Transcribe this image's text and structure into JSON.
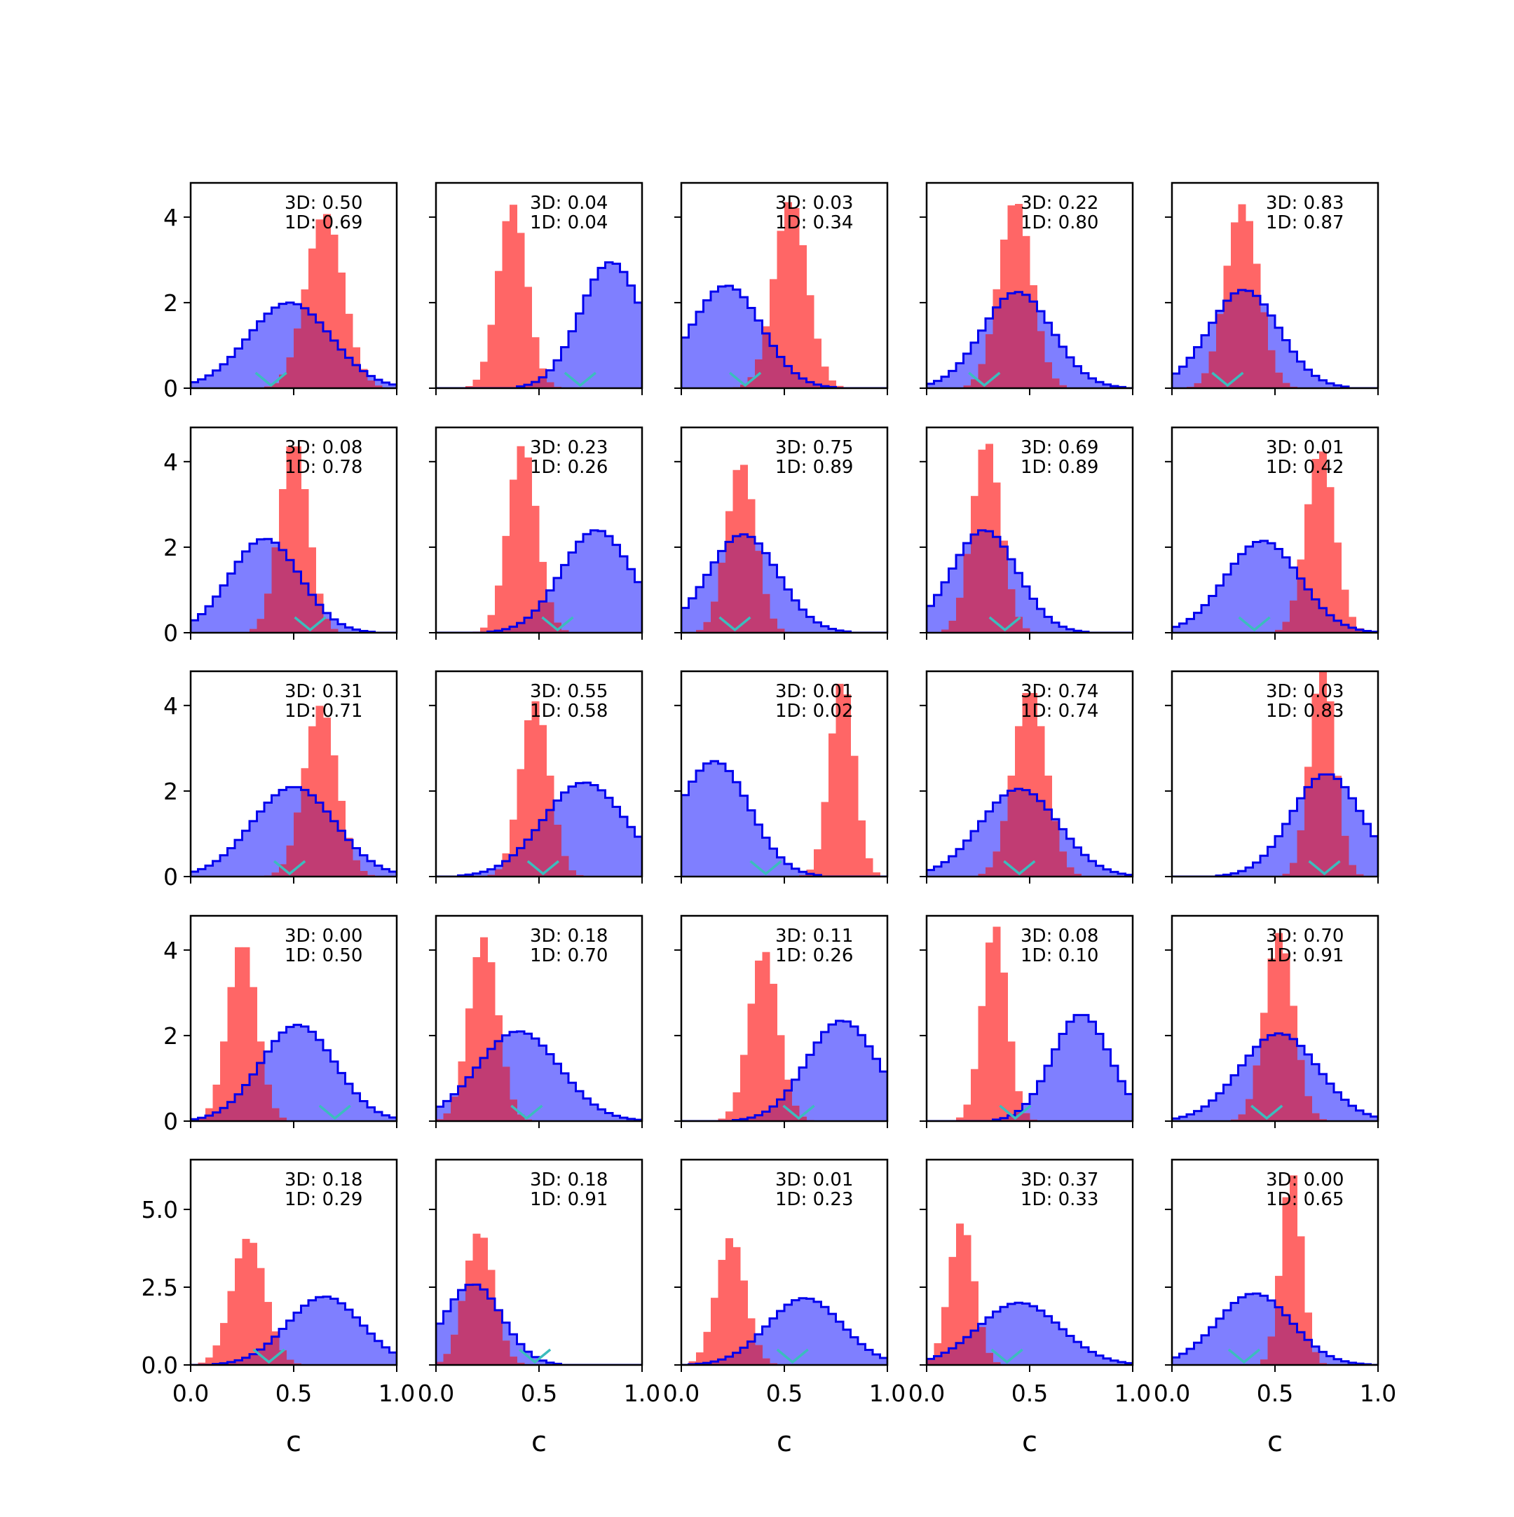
{
  "figure": {
    "type": "histogram-grid",
    "rows": 5,
    "cols": 5,
    "xlabel": "c",
    "annotation_prefixes": [
      "3D: ",
      "1D: "
    ],
    "colors": {
      "wide_fill": "#7f7fff",
      "wide_edge": "#0000ee",
      "narrow_fill": "#ff6666",
      "overlap_fill": "#c13c73",
      "marker": "#3bbdbd"
    },
    "xticks": [
      0.0,
      0.5,
      1.0
    ],
    "xtick_labels": [
      "0.0",
      "0.5",
      "1.0"
    ],
    "yticks_rows_1_4": [
      0,
      2,
      4
    ],
    "ytick_labels_rows_1_4": [
      "0",
      "2",
      "4"
    ],
    "ylim_rows_1_4": [
      0,
      4.8
    ],
    "yticks_row_5": [
      0.0,
      2.5,
      5.0
    ],
    "ytick_labels_row_5": [
      "0.0",
      "2.5",
      "5.0"
    ],
    "ylim_row_5": [
      0,
      6.6
    ]
  },
  "chart_data": [
    {
      "type": "histogram",
      "panel": "r1c1",
      "xlim": [
        0,
        1
      ],
      "annot_3d": "0.50",
      "annot_1d": "0.69",
      "marker_x": 0.39,
      "series": [
        {
          "name": "wide",
          "mean": 0.48,
          "sd": 0.2,
          "peak": 2.0
        },
        {
          "name": "narrow",
          "mean": 0.65,
          "sd": 0.09,
          "peak": 4.1
        }
      ]
    },
    {
      "type": "histogram",
      "panel": "r1c2",
      "xlim": [
        0,
        1
      ],
      "annot_3d": "0.04",
      "annot_1d": "0.04",
      "marker_x": 0.7,
      "series": [
        {
          "name": "wide",
          "mean": 0.85,
          "sd": 0.15,
          "peak": 2.95
        },
        {
          "name": "narrow",
          "mean": 0.37,
          "sd": 0.07,
          "peak": 4.3
        }
      ]
    },
    {
      "type": "histogram",
      "panel": "r1c3",
      "xlim": [
        0,
        1
      ],
      "annot_3d": "0.03",
      "annot_1d": "0.34",
      "marker_x": 0.31,
      "series": [
        {
          "name": "wide",
          "mean": 0.22,
          "sd": 0.17,
          "peak": 2.4
        },
        {
          "name": "narrow",
          "mean": 0.53,
          "sd": 0.08,
          "peak": 4.4
        }
      ]
    },
    {
      "type": "histogram",
      "panel": "r1c4",
      "xlim": [
        0,
        1
      ],
      "annot_3d": "0.22",
      "annot_1d": "0.80",
      "marker_x": 0.28,
      "series": [
        {
          "name": "wide",
          "mean": 0.44,
          "sd": 0.17,
          "peak": 2.25
        },
        {
          "name": "narrow",
          "mean": 0.43,
          "sd": 0.08,
          "peak": 4.4
        }
      ]
    },
    {
      "type": "histogram",
      "panel": "r1c5",
      "xlim": [
        0,
        1
      ],
      "annot_3d": "0.83",
      "annot_1d": "0.87",
      "marker_x": 0.27,
      "series": [
        {
          "name": "wide",
          "mean": 0.35,
          "sd": 0.17,
          "peak": 2.3
        },
        {
          "name": "narrow",
          "mean": 0.34,
          "sd": 0.08,
          "peak": 4.3
        }
      ]
    },
    {
      "type": "histogram",
      "panel": "r2c1",
      "xlim": [
        0,
        1
      ],
      "annot_3d": "0.08",
      "annot_1d": "0.78",
      "marker_x": 0.58,
      "series": [
        {
          "name": "wide",
          "mean": 0.36,
          "sd": 0.17,
          "peak": 2.2
        },
        {
          "name": "narrow",
          "mean": 0.5,
          "sd": 0.07,
          "peak": 4.5
        }
      ]
    },
    {
      "type": "histogram",
      "panel": "r2c2",
      "xlim": [
        0,
        1
      ],
      "annot_3d": "0.23",
      "annot_1d": "0.26",
      "marker_x": 0.59,
      "series": [
        {
          "name": "wide",
          "mean": 0.78,
          "sd": 0.17,
          "peak": 2.4
        },
        {
          "name": "narrow",
          "mean": 0.42,
          "sd": 0.07,
          "peak": 4.4
        }
      ]
    },
    {
      "type": "histogram",
      "panel": "r2c3",
      "xlim": [
        0,
        1
      ],
      "annot_3d": "0.75",
      "annot_1d": "0.89",
      "marker_x": 0.26,
      "series": [
        {
          "name": "wide",
          "mean": 0.3,
          "sd": 0.17,
          "peak": 2.3
        },
        {
          "name": "narrow",
          "mean": 0.29,
          "sd": 0.07,
          "peak": 4.0
        }
      ]
    },
    {
      "type": "histogram",
      "panel": "r2c4",
      "xlim": [
        0,
        1
      ],
      "annot_3d": "0.69",
      "annot_1d": "0.89",
      "marker_x": 0.38,
      "series": [
        {
          "name": "wide",
          "mean": 0.28,
          "sd": 0.16,
          "peak": 2.4
        },
        {
          "name": "narrow",
          "mean": 0.29,
          "sd": 0.07,
          "peak": 4.5
        }
      ]
    },
    {
      "type": "histogram",
      "panel": "r2c5",
      "xlim": [
        0,
        1
      ],
      "annot_3d": "0.01",
      "annot_1d": "0.42",
      "marker_x": 0.4,
      "series": [
        {
          "name": "wide",
          "mean": 0.44,
          "sd": 0.18,
          "peak": 2.15
        },
        {
          "name": "narrow",
          "mean": 0.72,
          "sd": 0.07,
          "peak": 4.3
        }
      ]
    },
    {
      "type": "histogram",
      "panel": "r3c1",
      "xlim": [
        0,
        1
      ],
      "annot_3d": "0.31",
      "annot_1d": "0.71",
      "marker_x": 0.48,
      "series": [
        {
          "name": "wide",
          "mean": 0.5,
          "sd": 0.2,
          "peak": 2.1
        },
        {
          "name": "narrow",
          "mean": 0.63,
          "sd": 0.08,
          "peak": 4.0
        }
      ]
    },
    {
      "type": "histogram",
      "panel": "r3c2",
      "xlim": [
        0,
        1
      ],
      "annot_3d": "0.55",
      "annot_1d": "0.58",
      "marker_x": 0.52,
      "series": [
        {
          "name": "wide",
          "mean": 0.72,
          "sd": 0.2,
          "peak": 2.2
        },
        {
          "name": "narrow",
          "mean": 0.48,
          "sd": 0.07,
          "peak": 4.1
        }
      ]
    },
    {
      "type": "histogram",
      "panel": "r3c3",
      "xlim": [
        0,
        1
      ],
      "annot_3d": "0.01",
      "annot_1d": "0.02",
      "marker_x": 0.41,
      "series": [
        {
          "name": "wide",
          "mean": 0.16,
          "sd": 0.17,
          "peak": 2.7
        },
        {
          "name": "narrow",
          "mean": 0.78,
          "sd": 0.06,
          "peak": 4.6
        }
      ]
    },
    {
      "type": "histogram",
      "panel": "r3c4",
      "xlim": [
        0,
        1
      ],
      "annot_3d": "0.74",
      "annot_1d": "0.74",
      "marker_x": 0.45,
      "series": [
        {
          "name": "wide",
          "mean": 0.45,
          "sd": 0.19,
          "peak": 2.05
        },
        {
          "name": "narrow",
          "mean": 0.5,
          "sd": 0.08,
          "peak": 4.4
        }
      ]
    },
    {
      "type": "histogram",
      "panel": "r3c5",
      "xlim": [
        0,
        1
      ],
      "annot_3d": "0.03",
      "annot_1d": "0.83",
      "marker_x": 0.74,
      "series": [
        {
          "name": "wide",
          "mean": 0.75,
          "sd": 0.17,
          "peak": 2.4
        },
        {
          "name": "narrow",
          "mean": 0.73,
          "sd": 0.06,
          "peak": 5.0
        }
      ]
    },
    {
      "type": "histogram",
      "panel": "r4c1",
      "xlim": [
        0,
        1
      ],
      "annot_3d": "0.00",
      "annot_1d": "0.50",
      "marker_x": 0.7,
      "series": [
        {
          "name": "wide",
          "mean": 0.52,
          "sd": 0.18,
          "peak": 2.25
        },
        {
          "name": "narrow",
          "mean": 0.25,
          "sd": 0.07,
          "peak": 4.2
        }
      ]
    },
    {
      "type": "histogram",
      "panel": "r4c2",
      "xlim": [
        0,
        1
      ],
      "annot_3d": "0.18",
      "annot_1d": "0.70",
      "marker_x": 0.44,
      "series": [
        {
          "name": "wide",
          "mean": 0.4,
          "sd": 0.2,
          "peak": 2.1
        },
        {
          "name": "narrow",
          "mean": 0.23,
          "sd": 0.07,
          "peak": 4.3
        }
      ]
    },
    {
      "type": "histogram",
      "panel": "r4c3",
      "xlim": [
        0,
        1
      ],
      "annot_3d": "0.11",
      "annot_1d": "0.26",
      "marker_x": 0.57,
      "series": [
        {
          "name": "wide",
          "mean": 0.78,
          "sd": 0.17,
          "peak": 2.35
        },
        {
          "name": "narrow",
          "mean": 0.4,
          "sd": 0.07,
          "peak": 4.0
        }
      ]
    },
    {
      "type": "histogram",
      "panel": "r4c4",
      "xlim": [
        0,
        1
      ],
      "annot_3d": "0.08",
      "annot_1d": "0.10",
      "marker_x": 0.43,
      "series": [
        {
          "name": "wide",
          "mean": 0.75,
          "sd": 0.14,
          "peak": 2.5
        },
        {
          "name": "narrow",
          "mean": 0.33,
          "sd": 0.06,
          "peak": 4.6
        }
      ]
    },
    {
      "type": "histogram",
      "panel": "r4c5",
      "xlim": [
        0,
        1
      ],
      "annot_3d": "0.70",
      "annot_1d": "0.91",
      "marker_x": 0.46,
      "series": [
        {
          "name": "wide",
          "mean": 0.52,
          "sd": 0.19,
          "peak": 2.05
        },
        {
          "name": "narrow",
          "mean": 0.52,
          "sd": 0.07,
          "peak": 4.4
        }
      ]
    },
    {
      "type": "histogram",
      "panel": "r5c1",
      "xlim": [
        0,
        1
      ],
      "annot_3d": "0.18",
      "annot_1d": "0.29",
      "marker_x": 0.38,
      "series": [
        {
          "name": "wide",
          "mean": 0.65,
          "sd": 0.18,
          "peak": 2.2
        },
        {
          "name": "narrow",
          "mean": 0.28,
          "sd": 0.08,
          "peak": 4.1
        }
      ]
    },
    {
      "type": "histogram",
      "panel": "r5c2",
      "xlim": [
        0,
        1
      ],
      "annot_3d": "0.18",
      "annot_1d": "0.91",
      "marker_x": 0.48,
      "series": [
        {
          "name": "wide",
          "mean": 0.18,
          "sd": 0.14,
          "peak": 2.6
        },
        {
          "name": "narrow",
          "mean": 0.21,
          "sd": 0.07,
          "peak": 4.3
        }
      ]
    },
    {
      "type": "histogram",
      "panel": "r5c3",
      "xlim": [
        0,
        1
      ],
      "annot_3d": "0.01",
      "annot_1d": "0.23",
      "marker_x": 0.54,
      "series": [
        {
          "name": "wide",
          "mean": 0.6,
          "sd": 0.18,
          "peak": 2.15
        },
        {
          "name": "narrow",
          "mean": 0.24,
          "sd": 0.07,
          "peak": 4.1
        }
      ]
    },
    {
      "type": "histogram",
      "panel": "r5c4",
      "xlim": [
        0,
        1
      ],
      "annot_3d": "0.37",
      "annot_1d": "0.33",
      "marker_x": 0.39,
      "series": [
        {
          "name": "wide",
          "mean": 0.45,
          "sd": 0.2,
          "peak": 2.0
        },
        {
          "name": "narrow",
          "mean": 0.17,
          "sd": 0.06,
          "peak": 4.6
        }
      ]
    },
    {
      "type": "histogram",
      "panel": "r5c5",
      "xlim": [
        0,
        1
      ],
      "annot_3d": "0.00",
      "annot_1d": "0.65",
      "marker_x": 0.35,
      "series": [
        {
          "name": "wide",
          "mean": 0.4,
          "sd": 0.18,
          "peak": 2.3
        },
        {
          "name": "narrow",
          "mean": 0.58,
          "sd": 0.05,
          "peak": 6.2
        }
      ]
    }
  ]
}
